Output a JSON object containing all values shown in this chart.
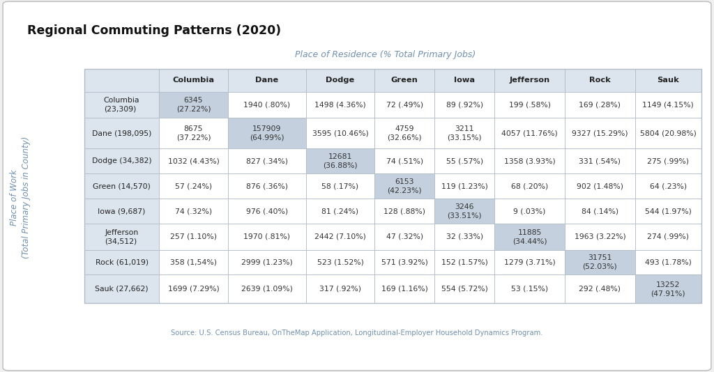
{
  "title": "Regional Commuting Patterns (2020)",
  "col_header_label": "Place of Residence (% Total Primary Jobs)",
  "row_header_label": "Place of Work\n(Total Primary Jobs in County)",
  "source_text": "Source: U.S. Census Bureau, OnTheMap Application, Longitudinal-Employer Household Dynamics Program.",
  "columns": [
    "Columbia",
    "Dane",
    "Dodge",
    "Green",
    "Iowa",
    "Jefferson",
    "Rock",
    "Sauk"
  ],
  "rows": [
    "Columbia\n(23,309)",
    "Dane (198,095)",
    "Dodge (34,382)",
    "Green (14,570)",
    "Iowa (9,687)",
    "Jefferson\n(34,512)",
    "Rock (61,019)",
    "Sauk (27,662)"
  ],
  "cells": [
    [
      "6345\n(27.22%)",
      "1940 (.80%)",
      "1498 (4.36%)",
      "72 (.49%)",
      "89 (.92%)",
      "199 (.58%)",
      "169 (.28%)",
      "1149 (4.15%)"
    ],
    [
      "8675\n(37.22%)",
      "157909\n(64.99%)",
      "3595 (10.46%)",
      "4759\n(32.66%)",
      "3211\n(33.15%)",
      "4057 (11.76%)",
      "9327 (15.29%)",
      "5804 (20.98%)"
    ],
    [
      "1032 (4.43%)",
      "827 (.34%)",
      "12681\n(36.88%)",
      "74 (.51%)",
      "55 (.57%)",
      "1358 (3.93%)",
      "331 (.54%)",
      "275 (.99%)"
    ],
    [
      "57 (.24%)",
      "876 (.36%)",
      "58 (.17%)",
      "6153\n(42.23%)",
      "119 (1.23%)",
      "68 (.20%)",
      "902 (1.48%)",
      "64 (.23%)"
    ],
    [
      "74 (.32%)",
      "976 (.40%)",
      "81 (.24%)",
      "128 (.88%)",
      "3246\n(33.51%)",
      "9 (.03%)",
      "84 (.14%)",
      "544 (1.97%)"
    ],
    [
      "257 (1.10%)",
      "1970 (.81%)",
      "2442 (7.10%)",
      "47 (.32%)",
      "32 (.33%)",
      "11885\n(34.44%)",
      "1963 (3.22%)",
      "274 (.99%)"
    ],
    [
      "358 (1,54%)",
      "2999 (1.23%)",
      "523 (1.52%)",
      "571 (3.92%)",
      "152 (1.57%)",
      "1279 (3.71%)",
      "31751\n(52.03%)",
      "493 (1.78%)"
    ],
    [
      "1699 (7.29%)",
      "2639 (1.09%)",
      "317 (.92%)",
      "169 (1.16%)",
      "554 (5.72%)",
      "53 (.15%)",
      "292 (.48%)",
      "13252\n(47.91%)"
    ]
  ],
  "bg_color": "#f0f0f0",
  "header_bg": "#dce4ed",
  "diagonal_bg": "#c5d0de",
  "cell_bg": "#ffffff",
  "grid_color": "#b0bcc8",
  "title_color": "#111111",
  "header_text_color": "#222222",
  "cell_text_color": "#333333",
  "col_header_label_color": "#7090b0",
  "source_color": "#7090b0"
}
